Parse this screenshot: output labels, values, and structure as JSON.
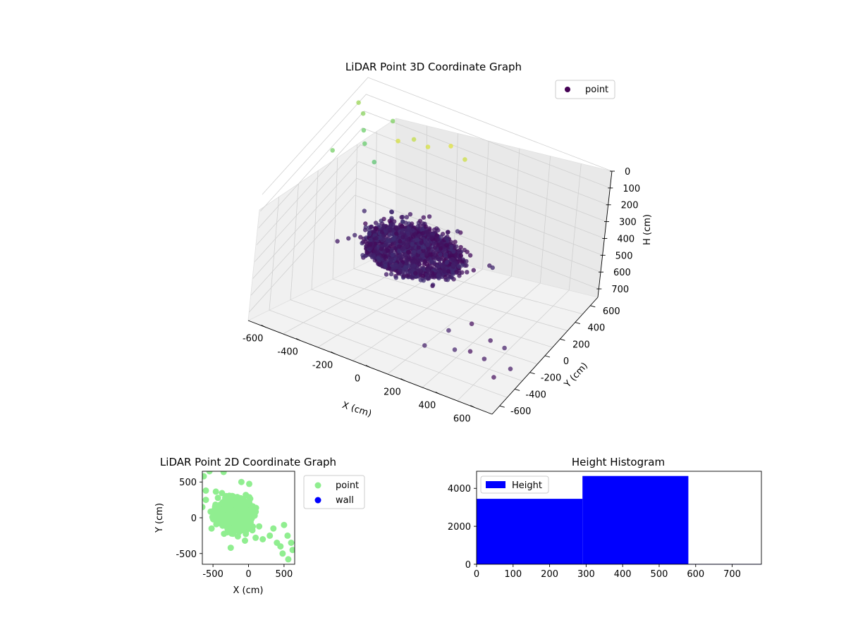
{
  "chart_data": [
    {
      "type": "scatter",
      "title": "LiDAR Point 3D Coordinate Graph",
      "xlabel": "X (cm)",
      "ylabel": "Y (cm)",
      "zlabel": "H (cm)",
      "x_ticks": [
        "-600",
        "-400",
        "-200",
        "0",
        "200",
        "400",
        "600"
      ],
      "y_ticks": [
        "-600",
        "-400",
        "-200",
        "0",
        "200",
        "400",
        "600"
      ],
      "z_ticks": [
        "0",
        "100",
        "200",
        "300",
        "400",
        "500",
        "600",
        "700"
      ],
      "xlim": [
        -700,
        700
      ],
      "ylim": [
        -700,
        700
      ],
      "zlim": [
        0,
        750
      ],
      "z_inverted": true,
      "colormap": "viridis",
      "legend": {
        "placement": "top-right",
        "entries": [
          "point"
        ],
        "marker_color": "#440154"
      },
      "series": [
        {
          "name": "point",
          "points_sample": [
            {
              "x": -250,
              "y": 150,
              "h": 500
            },
            {
              "x": -150,
              "y": 250,
              "h": 480
            },
            {
              "x": -50,
              "y": 200,
              "h": 470
            },
            {
              "x": 50,
              "y": 150,
              "h": 460
            },
            {
              "x": -300,
              "y": -50,
              "h": 460
            },
            {
              "x": -200,
              "y": -100,
              "h": 450
            },
            {
              "x": -100,
              "y": -50,
              "h": 440
            },
            {
              "x": 0,
              "y": 0,
              "h": 430
            },
            {
              "x": 100,
              "y": 50,
              "h": 420
            },
            {
              "x": 150,
              "y": -100,
              "h": 410
            },
            {
              "x": 50,
              "y": -200,
              "h": 400
            },
            {
              "x": -100,
              "y": -250,
              "h": 420
            },
            {
              "x": -650,
              "y": 550,
              "h": 120
            },
            {
              "x": -600,
              "y": 450,
              "h": 150
            },
            {
              "x": -550,
              "y": 350,
              "h": 160
            },
            {
              "x": -500,
              "y": 600,
              "h": 130
            },
            {
              "x": -450,
              "y": 250,
              "h": 180
            },
            {
              "x": -650,
              "y": 150,
              "h": 140
            },
            {
              "x": -700,
              "y": 600,
              "h": 100
            },
            {
              "x": -300,
              "y": 400,
              "h": 60
            },
            {
              "x": -200,
              "y": 350,
              "h": 40
            },
            {
              "x": -100,
              "y": 420,
              "h": 30
            },
            {
              "x": 0,
              "y": 380,
              "h": 50
            },
            {
              "x": -350,
              "y": 300,
              "h": 40
            },
            {
              "x": 450,
              "y": -450,
              "h": 600
            },
            {
              "x": 550,
              "y": -500,
              "h": 580
            },
            {
              "x": 600,
              "y": -350,
              "h": 570
            },
            {
              "x": 500,
              "y": -300,
              "h": 590
            },
            {
              "x": 400,
              "y": -550,
              "h": 560
            },
            {
              "x": 650,
              "y": -600,
              "h": 600
            },
            {
              "x": 700,
              "y": -500,
              "h": 580
            },
            {
              "x": 250,
              "y": -600,
              "h": 570
            },
            {
              "x": 300,
              "y": -400,
              "h": 560
            },
            {
              "x": 350,
              "y": -200,
              "h": 600
            }
          ]
        }
      ]
    },
    {
      "type": "scatter",
      "title": "LiDAR Point 2D Coordinate Graph",
      "xlabel": "X (cm)",
      "ylabel": "Y (cm)",
      "x_ticks": [
        "-500",
        "0",
        "500"
      ],
      "y_ticks": [
        "-500",
        "0",
        "500"
      ],
      "xlim": [
        -650,
        650
      ],
      "ylim": [
        -650,
        650
      ],
      "legend": {
        "placement": "outside-right"
      },
      "series": [
        {
          "name": "point",
          "color": "#90ee90",
          "cluster": {
            "center_x": -200,
            "center_y": 50,
            "spread_x": 200,
            "spread_y": 180
          },
          "outliers": [
            {
              "x": -630,
              "y": 580
            },
            {
              "x": -550,
              "y": 650
            },
            {
              "x": -350,
              "y": 640
            },
            {
              "x": -600,
              "y": 380
            },
            {
              "x": -600,
              "y": 250
            },
            {
              "x": -650,
              "y": 150
            },
            {
              "x": -520,
              "y": -150
            },
            {
              "x": -250,
              "y": -420
            },
            {
              "x": -100,
              "y": 500
            },
            {
              "x": 300,
              "y": -250
            },
            {
              "x": 400,
              "y": -350
            },
            {
              "x": 450,
              "y": -400
            },
            {
              "x": 500,
              "y": -100
            },
            {
              "x": 480,
              "y": -500
            },
            {
              "x": 560,
              "y": -580
            },
            {
              "x": 600,
              "y": -350
            },
            {
              "x": 620,
              "y": -450
            },
            {
              "x": 550,
              "y": -250
            },
            {
              "x": 350,
              "y": -150
            },
            {
              "x": 200,
              "y": -300
            },
            {
              "x": 100,
              "y": -280
            },
            {
              "x": -50,
              "y": -320
            },
            {
              "x": -150,
              "y": -260
            },
            {
              "x": 150,
              "y": -120
            }
          ]
        },
        {
          "name": "wall",
          "color": "#0000ff",
          "points": []
        }
      ]
    },
    {
      "type": "bar",
      "title": "Height Histogram",
      "x_ticks": [
        "0",
        "100",
        "200",
        "300",
        "400",
        "500",
        "600",
        "700"
      ],
      "y_ticks": [
        "0",
        "2000",
        "4000"
      ],
      "xlim": [
        0,
        780
      ],
      "ylim": [
        0,
        4900
      ],
      "legend": {
        "placement": "top-left",
        "entries": [
          "Height"
        ]
      },
      "series": [
        {
          "name": "Height",
          "color": "#0000ff",
          "bins": [
            {
              "start": 0,
              "end": 290,
              "count": 3450
            },
            {
              "start": 290,
              "end": 580,
              "count": 4650
            },
            {
              "start": 580,
              "end": 780,
              "count": 20
            }
          ]
        }
      ]
    }
  ]
}
